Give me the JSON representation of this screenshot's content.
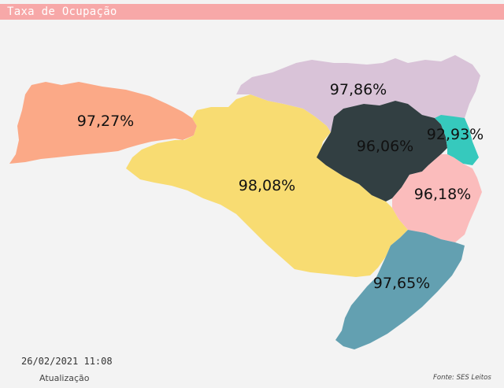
{
  "header": {
    "title": "Taxa de Ocupação",
    "color": "#f7a8a8"
  },
  "map": {
    "regions": [
      {
        "id": "oeste",
        "label": "97,27%",
        "color": "#fba987"
      },
      {
        "id": "meio-oeste",
        "label": "98,08%",
        "color": "#f8dc72"
      },
      {
        "id": "norte",
        "label": "97,86%",
        "color": "#d9c3d8"
      },
      {
        "id": "vale-itajai",
        "label": "96,06%",
        "color": "#323f42"
      },
      {
        "id": "foz-itajai",
        "label": "92,93%",
        "color": "#36c9bd"
      },
      {
        "id": "grande-florianopolis",
        "label": "96,18%",
        "color": "#fbbcbc"
      },
      {
        "id": "sul",
        "label": "97,65%",
        "color": "#63a0b1"
      }
    ]
  },
  "footer": {
    "date": "26/02/2021 11:08",
    "caption": "Atualização",
    "source": "Fonte: SES Leitos"
  }
}
